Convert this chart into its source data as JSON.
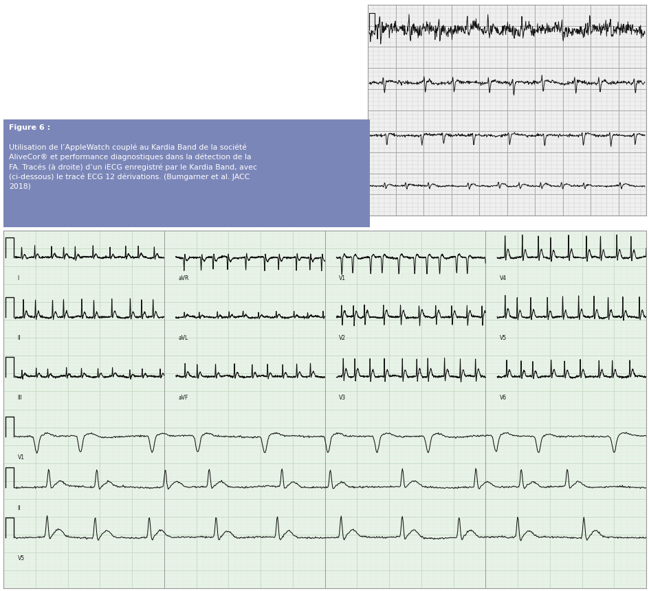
{
  "background_color": "#ffffff",
  "caption_box_color": "#7b86b8",
  "caption_text_color": "#ffffff",
  "caption_title": "Figure 6 :",
  "caption_line1": "Utilisation de l’AppleWatch couplé au Kardia Band de la société",
  "caption_line2": "AliveCor® et performance diagnostiques dans la détection de la",
  "caption_line3": "FA. Tracés (à droite) d’un iECG enregistré par le Kardia Band, avec",
  "caption_line4": "(ci-dessous) le tracé ECG 12 dérivations. (Bumgarner et al. JACC",
  "caption_line5": "2018)",
  "ecg_grid_major": "#c8ddc8",
  "ecg_grid_minor": "#ddeedd",
  "ecg_line_color": "#111111",
  "ecg_bg": "#e8f2e8",
  "iecg_grid_major": "#aaaaaa",
  "iecg_grid_minor": "#cccccc",
  "iecg_bg": "#f0f0f0",
  "fig_width": 9.45,
  "fig_height": 8.62,
  "dpi": 100
}
